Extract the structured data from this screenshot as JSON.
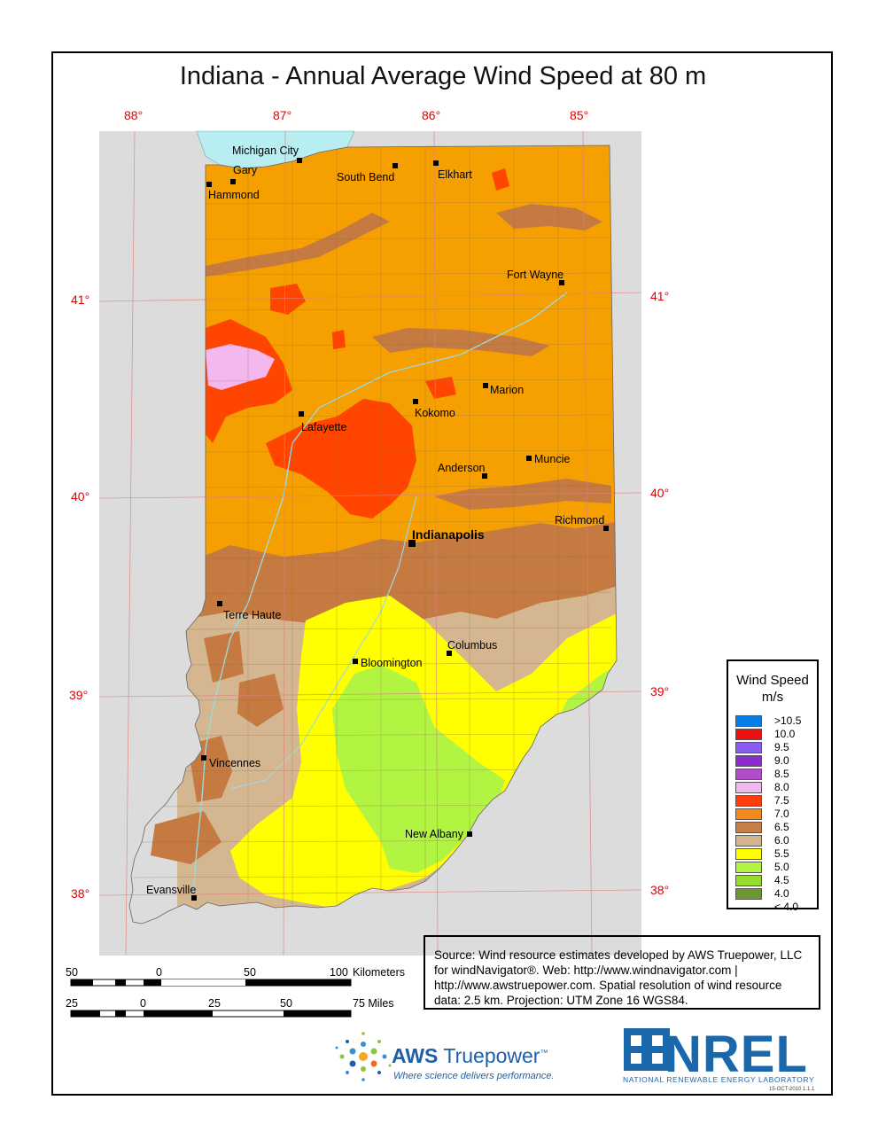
{
  "title": "Indiana - Annual Average Wind Speed at 80 m",
  "longitude_labels": [
    "88°",
    "87°",
    "86°",
    "85°"
  ],
  "latitude_labels": [
    "41°",
    "40°",
    "39°",
    "38°"
  ],
  "cities": [
    {
      "name": "Michigan City",
      "bold": false
    },
    {
      "name": "Gary",
      "bold": false
    },
    {
      "name": "Hammond",
      "bold": false
    },
    {
      "name": "South Bend",
      "bold": false
    },
    {
      "name": "Elkhart",
      "bold": false
    },
    {
      "name": "Fort Wayne",
      "bold": false
    },
    {
      "name": "Marion",
      "bold": false
    },
    {
      "name": "Kokomo",
      "bold": false
    },
    {
      "name": "Lafayette",
      "bold": false
    },
    {
      "name": "Muncie",
      "bold": false
    },
    {
      "name": "Anderson",
      "bold": false
    },
    {
      "name": "Richmond",
      "bold": false
    },
    {
      "name": "Indianapolis",
      "bold": true
    },
    {
      "name": "Terre Haute",
      "bold": false
    },
    {
      "name": "Columbus",
      "bold": false
    },
    {
      "name": "Bloomington",
      "bold": false
    },
    {
      "name": "Vincennes",
      "bold": false
    },
    {
      "name": "New Albany",
      "bold": false
    },
    {
      "name": "Evansville",
      "bold": false
    }
  ],
  "legend": {
    "title_line1": "Wind Speed",
    "title_line2": "m/s",
    "items": [
      {
        "label": ">10.5",
        "color": "#0a7ee8"
      },
      {
        "label": "10.0",
        "color": "#ee1010"
      },
      {
        "label": "9.5",
        "color": "#8a5cf0"
      },
      {
        "label": "9.0",
        "color": "#8c2ad0"
      },
      {
        "label": "8.5",
        "color": "#b24cc8"
      },
      {
        "label": "8.0",
        "color": "#f2b8ee"
      },
      {
        "label": "7.5",
        "color": "#ff3c0a"
      },
      {
        "label": "7.0",
        "color": "#f68a1c"
      },
      {
        "label": "6.5",
        "color": "#c57e44"
      },
      {
        "label": "6.0",
        "color": "#d2b48e"
      },
      {
        "label": "5.5",
        "color": "#ffff00"
      },
      {
        "label": "5.0",
        "color": "#b2f442"
      },
      {
        "label": "4.5",
        "color": "#96dc2e"
      },
      {
        "label": "4.0",
        "color": "#6c9630"
      },
      {
        "label": "< 4.0",
        "color": ""
      }
    ]
  },
  "scalebar": {
    "km_labels": [
      "50",
      "0",
      "50",
      "100"
    ],
    "km_unit": "Kilometers",
    "mi_labels": [
      "25",
      "0",
      "25",
      "50",
      "75"
    ],
    "mi_unit": "Miles"
  },
  "source_text": "Source: Wind resource estimates developed by AWS Truepower, LLC for windNavigator®. Web: http://www.windnavigator.com | http://www.awstruepower.com. Spatial resolution of wind resource data: 2.5 km. Projection: UTM Zone 16 WGS84.",
  "logos": {
    "aws_name_part1": "AWS",
    "aws_name_part2": "Truepower",
    "aws_tm": "™",
    "aws_tagline": "Where science delivers performance.",
    "nrel_name": "NREL",
    "nrel_subtitle": "NATIONAL RENEWABLE ENERGY LABORATORY"
  },
  "version": "15-OCT-2010 1.1.1",
  "colors": {
    "lake": "#b8eef2",
    "outside": "#dcdcdc",
    "grid": "#e00000",
    "county_lines": "#8a6a4a"
  }
}
